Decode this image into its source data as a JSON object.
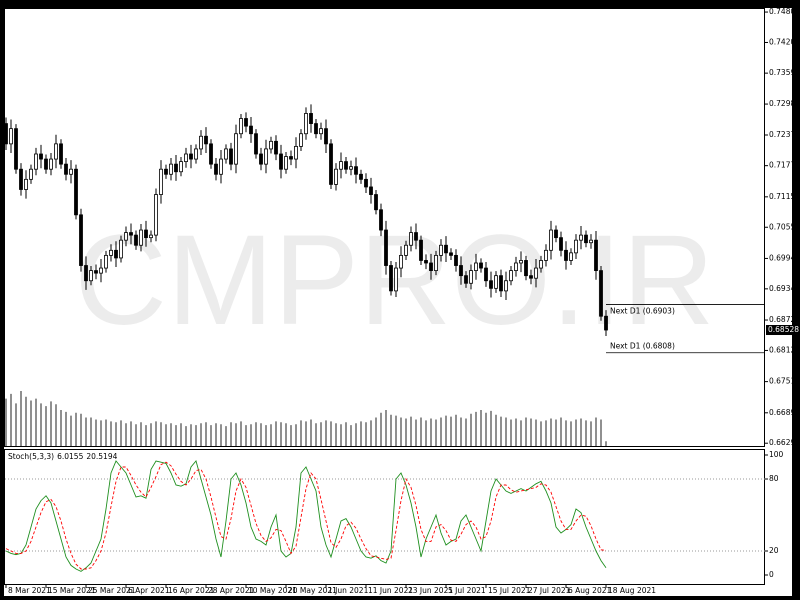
{
  "chart_data": [
    {
      "type": "candlestick",
      "watermark": "CMPRO.IR",
      "categories": [
        "8 Mar 2021",
        null,
        null,
        null,
        null,
        null,
        null,
        null,
        "15 Mar 2021",
        null,
        null,
        null,
        null,
        null,
        null,
        null,
        "25 Mar 2021",
        null,
        null,
        null,
        null,
        null,
        null,
        null,
        "6 Apr 2021",
        null,
        null,
        null,
        null,
        null,
        null,
        null,
        "16 Apr 2021",
        null,
        null,
        null,
        null,
        null,
        null,
        null,
        "28 Apr 2021",
        null,
        null,
        null,
        null,
        null,
        null,
        null,
        "10 May 2021",
        null,
        null,
        null,
        null,
        null,
        null,
        null,
        "20 May 2021",
        null,
        null,
        null,
        null,
        null,
        null,
        null,
        "1 Jun 2021",
        null,
        null,
        null,
        null,
        null,
        null,
        null,
        "11 Jun 2021",
        null,
        null,
        null,
        null,
        null,
        null,
        null,
        "23 Jun 2021",
        null,
        null,
        null,
        null,
        null,
        null,
        null,
        "5 Jul 2021",
        null,
        null,
        null,
        null,
        null,
        null,
        null,
        "15 Jul 2021",
        null,
        null,
        null,
        null,
        null,
        null,
        null,
        "27 Jul 2021",
        null,
        null,
        null,
        null,
        null,
        null,
        null,
        "6 Aug 2021",
        null,
        null,
        null,
        null,
        null,
        null,
        null,
        "18 Aug 2021"
      ],
      "open": [
        0.726,
        0.722,
        0.725,
        0.717,
        0.713,
        0.715,
        0.717,
        0.72,
        0.719,
        0.717,
        0.719,
        0.722,
        0.718,
        0.716,
        0.717,
        0.708,
        0.698,
        0.695,
        0.697,
        0.6965,
        0.6975,
        0.7,
        0.701,
        0.6995,
        0.703,
        0.7045,
        0.704,
        0.702,
        0.705,
        0.7035,
        0.704,
        0.712,
        0.717,
        0.716,
        0.718,
        0.7165,
        0.7185,
        0.72,
        0.719,
        0.721,
        0.7235,
        0.722,
        0.718,
        0.716,
        0.719,
        0.721,
        0.718,
        0.724,
        0.727,
        0.7255,
        0.724,
        0.72,
        0.718,
        0.721,
        0.7225,
        0.72,
        0.717,
        0.7195,
        0.719,
        0.7215,
        0.724,
        0.728,
        0.726,
        0.724,
        0.725,
        0.722,
        0.714,
        0.717,
        0.7185,
        0.717,
        0.7175,
        0.716,
        0.715,
        0.7135,
        0.712,
        0.709,
        0.705,
        0.698,
        0.693,
        0.6975,
        0.7,
        0.702,
        0.7045,
        0.703,
        0.699,
        0.6985,
        0.697,
        0.7,
        0.702,
        0.7005,
        0.7,
        0.698,
        0.696,
        0.6945,
        0.697,
        0.6985,
        0.6975,
        0.695,
        0.6935,
        0.696,
        0.693,
        0.695,
        0.697,
        0.6985,
        0.699,
        0.696,
        0.6955,
        0.6975,
        0.699,
        0.701,
        0.705,
        0.7035,
        0.701,
        0.699,
        0.7005,
        0.703,
        0.704,
        0.7025,
        0.703,
        0.697,
        0.688
      ],
      "high": [
        0.7272,
        0.7268,
        0.7259,
        0.7182,
        0.7168,
        0.7179,
        0.7212,
        0.7218,
        0.7199,
        0.7202,
        0.7238,
        0.7229,
        0.7192,
        0.7188,
        0.7179,
        0.7092,
        0.6998,
        0.6979,
        0.6982,
        0.6993,
        0.7009,
        0.7022,
        0.7028,
        0.7039,
        0.7057,
        0.7063,
        0.7049,
        0.7062,
        0.7068,
        0.7049,
        0.7132,
        0.7188,
        0.7179,
        0.7192,
        0.7198,
        0.7194,
        0.7212,
        0.7218,
        0.7219,
        0.7247,
        0.7253,
        0.7229,
        0.7192,
        0.7208,
        0.7219,
        0.7222,
        0.7258,
        0.7279,
        0.7282,
        0.7273,
        0.7249,
        0.7212,
        0.7228,
        0.7234,
        0.7237,
        0.7218,
        0.7204,
        0.7207,
        0.7233,
        0.7249,
        0.7292,
        0.7298,
        0.7269,
        0.7262,
        0.7268,
        0.7229,
        0.7182,
        0.7203,
        0.7194,
        0.7187,
        0.7193,
        0.7169,
        0.7162,
        0.7153,
        0.7129,
        0.7102,
        0.7068,
        0.6989,
        0.6987,
        0.7018,
        0.7029,
        0.7057,
        0.7063,
        0.7039,
        0.7002,
        0.7003,
        0.7009,
        0.7032,
        0.7038,
        0.7014,
        0.7012,
        0.6998,
        0.6969,
        0.6982,
        0.7003,
        0.6994,
        0.6987,
        0.6968,
        0.6969,
        0.6972,
        0.6968,
        0.6979,
        0.6997,
        0.7008,
        0.6999,
        0.6972,
        0.6993,
        0.6999,
        0.7022,
        0.7068,
        0.7059,
        0.7047,
        0.7028,
        0.7014,
        0.7042,
        0.7058,
        0.7049,
        0.7042,
        0.7048,
        0.6979,
        0.6892
      ],
      "low": [
        0.7208,
        0.7202,
        0.7161,
        0.7118,
        0.7112,
        0.7141,
        0.7158,
        0.7172,
        0.7161,
        0.7158,
        0.7172,
        0.7171,
        0.7148,
        0.7142,
        0.7071,
        0.6968,
        0.6932,
        0.6941,
        0.6953,
        0.6947,
        0.6966,
        0.6988,
        0.6977,
        0.6986,
        0.7018,
        0.7022,
        0.7011,
        0.7008,
        0.7017,
        0.7026,
        0.7028,
        0.7102,
        0.7151,
        0.7148,
        0.7147,
        0.7156,
        0.7173,
        0.7172,
        0.7181,
        0.7198,
        0.7202,
        0.7171,
        0.7148,
        0.7142,
        0.7181,
        0.7168,
        0.7162,
        0.7231,
        0.7243,
        0.7222,
        0.7191,
        0.7168,
        0.7162,
        0.7201,
        0.7188,
        0.7152,
        0.7161,
        0.7178,
        0.7172,
        0.7206,
        0.7228,
        0.7242,
        0.7231,
        0.7228,
        0.7202,
        0.7131,
        0.7128,
        0.7152,
        0.7161,
        0.7158,
        0.7142,
        0.7141,
        0.7123,
        0.7102,
        0.7081,
        0.7038,
        0.6962,
        0.6921,
        0.6918,
        0.6957,
        0.6991,
        0.7008,
        0.7012,
        0.6981,
        0.6973,
        0.6952,
        0.6961,
        0.6988,
        0.6987,
        0.6991,
        0.6968,
        0.6942,
        0.6936,
        0.6933,
        0.6952,
        0.6966,
        0.6938,
        0.6917,
        0.6926,
        0.6918,
        0.6912,
        0.6941,
        0.6958,
        0.6967,
        0.6951,
        0.6943,
        0.6937,
        0.6966,
        0.6978,
        0.6992,
        0.7026,
        0.6998,
        0.6972,
        0.6981,
        0.6993,
        0.7012,
        0.7016,
        0.7013,
        0.6952,
        0.6871,
        0.6841
      ],
      "close": [
        0.722,
        0.725,
        0.717,
        0.713,
        0.715,
        0.717,
        0.72,
        0.719,
        0.717,
        0.719,
        0.722,
        0.718,
        0.716,
        0.717,
        0.708,
        0.698,
        0.695,
        0.697,
        0.6965,
        0.6975,
        0.7,
        0.701,
        0.6995,
        0.703,
        0.7045,
        0.704,
        0.702,
        0.705,
        0.7035,
        0.704,
        0.712,
        0.717,
        0.716,
        0.718,
        0.7165,
        0.7185,
        0.72,
        0.719,
        0.721,
        0.7235,
        0.722,
        0.718,
        0.716,
        0.719,
        0.721,
        0.718,
        0.724,
        0.727,
        0.7255,
        0.724,
        0.72,
        0.718,
        0.721,
        0.7225,
        0.72,
        0.717,
        0.7195,
        0.719,
        0.7215,
        0.724,
        0.728,
        0.726,
        0.724,
        0.725,
        0.722,
        0.714,
        0.717,
        0.7185,
        0.717,
        0.7175,
        0.716,
        0.715,
        0.7135,
        0.712,
        0.709,
        0.705,
        0.698,
        0.693,
        0.6975,
        0.7,
        0.702,
        0.7045,
        0.703,
        0.699,
        0.6985,
        0.697,
        0.7,
        0.702,
        0.7005,
        0.7,
        0.698,
        0.696,
        0.6945,
        0.697,
        0.6985,
        0.6975,
        0.695,
        0.6935,
        0.696,
        0.693,
        0.695,
        0.697,
        0.6985,
        0.699,
        0.696,
        0.6955,
        0.6975,
        0.699,
        0.701,
        0.705,
        0.7035,
        0.701,
        0.699,
        0.7005,
        0.703,
        0.704,
        0.7025,
        0.703,
        0.697,
        0.688,
        0.68528
      ],
      "volume": [
        50,
        55,
        45,
        58,
        52,
        48,
        50,
        45,
        42,
        47,
        44,
        38,
        36,
        32,
        35,
        34,
        30,
        30,
        28,
        27,
        28,
        26,
        25,
        27,
        24,
        26,
        23,
        25,
        22,
        24,
        26,
        25,
        23,
        24,
        22,
        24,
        21,
        23,
        22,
        24,
        25,
        22,
        24,
        23,
        21,
        25,
        24,
        26,
        22,
        23,
        25,
        24,
        22,
        23,
        26,
        25,
        24,
        22,
        23,
        27,
        26,
        28,
        24,
        25,
        27,
        26,
        24,
        23,
        25,
        22,
        24,
        26,
        25,
        27,
        30,
        35,
        38,
        33,
        32,
        30,
        29,
        31,
        28,
        30,
        27,
        29,
        28,
        30,
        32,
        31,
        33,
        30,
        29,
        34,
        36,
        38,
        35,
        37,
        33,
        31,
        30,
        28,
        29,
        27,
        30,
        29,
        28,
        26,
        27,
        29,
        28,
        30,
        27,
        26,
        28,
        29,
        27,
        26,
        30,
        28,
        5
      ],
      "up_color": "#ffffff",
      "down_color": "#000000",
      "volume_color": "#222222",
      "ylim": [
        0.6624,
        0.7488
      ],
      "yticks": [
        {
          "value": 0.748,
          "label": "0.74800"
        },
        {
          "value": 0.742,
          "label": "0.74200"
        },
        {
          "value": 0.73595,
          "label": "0.73595"
        },
        {
          "value": 0.72985,
          "label": "0.72985"
        },
        {
          "value": 0.72375,
          "label": "0.72375"
        },
        {
          "value": 0.7177,
          "label": "0.71770"
        },
        {
          "value": 0.71155,
          "label": "0.71155"
        },
        {
          "value": 0.70555,
          "label": "0.70555"
        },
        {
          "value": 0.6994,
          "label": "0.69940"
        },
        {
          "value": 0.6934,
          "label": "0.69340"
        },
        {
          "value": 0.68725,
          "label": "0.68725"
        },
        {
          "value": 0.68125,
          "label": "0.68125"
        },
        {
          "value": 0.6751,
          "label": "0.67510"
        },
        {
          "value": 0.66895,
          "label": "0.66895"
        },
        {
          "value": 0.66295,
          "label": "0.66295"
        }
      ],
      "levels": [
        {
          "value": 0.6903,
          "label": "Next D1 (0.6903)"
        },
        {
          "value": 0.6808,
          "label": "Next D1 (0.6808)"
        }
      ],
      "last_price": {
        "value": 0.68528,
        "label": "0.68528"
      }
    },
    {
      "type": "stochastic",
      "title": "Stoch(5,3,3)",
      "series": [
        {
          "color": "#1f8f1f",
          "dash": false,
          "values": [
            20,
            18,
            17,
            18,
            25,
            40,
            55,
            62,
            66,
            60,
            45,
            30,
            15,
            8,
            5,
            3,
            6,
            10,
            20,
            30,
            55,
            85,
            95,
            90,
            85,
            75,
            65,
            66,
            64,
            88,
            95,
            94,
            93,
            85,
            75,
            74,
            76,
            90,
            95,
            80,
            65,
            50,
            30,
            15,
            45,
            80,
            85,
            75,
            60,
            40,
            30,
            28,
            25,
            40,
            50,
            20,
            15,
            18,
            40,
            85,
            90,
            80,
            70,
            40,
            25,
            15,
            30,
            45,
            47,
            40,
            30,
            20,
            15,
            14,
            16,
            12,
            10,
            20,
            80,
            85,
            75,
            60,
            40,
            15,
            30,
            40,
            50,
            35,
            25,
            28,
            30,
            45,
            50,
            40,
            30,
            20,
            45,
            70,
            80,
            75,
            70,
            68,
            70,
            72,
            70,
            73,
            76,
            78,
            70,
            60,
            40,
            35,
            38,
            42,
            55,
            52,
            40,
            30,
            20,
            12,
            6.0155
          ]
        },
        {
          "color": "#ff0000",
          "dash": true,
          "values": [
            22,
            20,
            18,
            18,
            20,
            28,
            40,
            52,
            61,
            63,
            57,
            45,
            30,
            18,
            9,
            5,
            5,
            6,
            12,
            20,
            35,
            57,
            78,
            90,
            90,
            83,
            75,
            69,
            65,
            73,
            82,
            92,
            94,
            91,
            84,
            78,
            75,
            80,
            87,
            88,
            80,
            65,
            48,
            32,
            30,
            47,
            70,
            80,
            73,
            58,
            43,
            33,
            28,
            31,
            38,
            37,
            28,
            18,
            24,
            48,
            72,
            85,
            80,
            63,
            45,
            27,
            23,
            30,
            41,
            44,
            39,
            30,
            22,
            16,
            15,
            14,
            13,
            14,
            37,
            62,
            80,
            73,
            58,
            38,
            28,
            28,
            40,
            42,
            37,
            29,
            28,
            34,
            42,
            45,
            40,
            30,
            32,
            45,
            65,
            75,
            75,
            71,
            69,
            70,
            71,
            72,
            73,
            76,
            75,
            69,
            57,
            45,
            38,
            38,
            45,
            50,
            49,
            41,
            30,
            21,
            20.5194
          ]
        }
      ],
      "ylim": [
        -7.5,
        105
      ],
      "yticks": [
        0,
        20,
        80,
        100
      ],
      "levels": [
        80,
        20
      ]
    }
  ]
}
